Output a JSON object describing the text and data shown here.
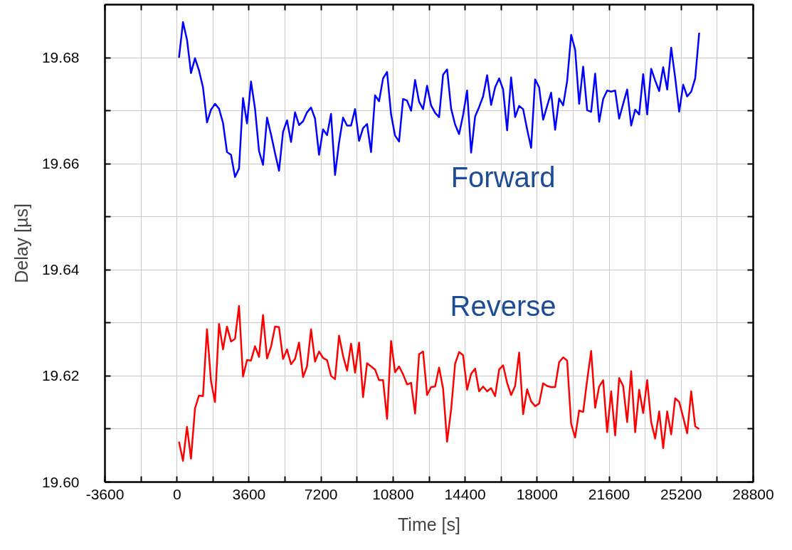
{
  "chart_data": {
    "type": "line",
    "xlabel": "Time [s]",
    "ylabel": "Delay [µs]",
    "x": [
      100,
      300,
      500,
      700,
      900,
      1100,
      1300,
      1500,
      1700,
      1900,
      2100,
      2300,
      2500,
      2700,
      2900,
      3100,
      3300,
      3500,
      3700,
      3900,
      4100,
      4300,
      4500,
      4700,
      4900,
      5100,
      5300,
      5500,
      5700,
      5900,
      6100,
      6300,
      6500,
      6700,
      6900,
      7100,
      7300,
      7500,
      7700,
      7900,
      8100,
      8300,
      8500,
      8700,
      8900,
      9100,
      9300,
      9500,
      9700,
      9900,
      10100,
      10300,
      10500,
      10700,
      10900,
      11100,
      11300,
      11500,
      11700,
      11900,
      12100,
      12300,
      12500,
      12700,
      12900,
      13100,
      13300,
      13500,
      13700,
      13900,
      14100,
      14300,
      14500,
      14700,
      14900,
      15100,
      15300,
      15500,
      15700,
      15900,
      16100,
      16300,
      16500,
      16700,
      16900,
      17100,
      17300,
      17500,
      17700,
      17900,
      18100,
      18300,
      18500,
      18700,
      18900,
      19100,
      19300,
      19500,
      19700,
      19900,
      20100,
      20300,
      20500,
      20700,
      20900,
      21100,
      21300,
      21500,
      21700,
      21900,
      22100,
      22300,
      22500,
      22700,
      22900,
      23100,
      23300,
      23500,
      23700,
      23900,
      24100,
      24300,
      24500,
      24700,
      24900,
      25100,
      25300,
      25500,
      25700,
      25900,
      26100
    ],
    "series": [
      {
        "name": "Forward",
        "color": "#0000ff",
        "values": [
          19.68,
          19.6867,
          19.6834,
          19.6771,
          19.6799,
          19.6776,
          19.6744,
          19.6678,
          19.6702,
          19.6713,
          19.6704,
          19.6677,
          19.6622,
          19.6617,
          19.6575,
          19.6591,
          19.6724,
          19.6676,
          19.6755,
          19.6704,
          19.6624,
          19.6598,
          19.6687,
          19.6655,
          19.662,
          19.6587,
          19.666,
          19.6682,
          19.6641,
          19.6697,
          19.6673,
          19.668,
          19.6697,
          19.6706,
          19.6685,
          19.6617,
          19.6665,
          19.6654,
          19.6694,
          19.6579,
          19.664,
          19.6687,
          19.6672,
          19.6672,
          19.6703,
          19.6643,
          19.6667,
          19.6675,
          19.6622,
          19.6729,
          19.6718,
          19.6761,
          19.6773,
          19.6693,
          19.6653,
          19.6642,
          19.6722,
          19.6719,
          19.67,
          19.6758,
          19.6717,
          19.6703,
          19.6747,
          19.671,
          19.6696,
          19.6688,
          19.6768,
          19.6778,
          19.6704,
          19.6674,
          19.6656,
          19.6692,
          19.6738,
          19.6621,
          19.6689,
          19.6707,
          19.6727,
          19.6767,
          19.6711,
          19.6744,
          19.6761,
          19.674,
          19.6663,
          19.6763,
          19.6688,
          19.6709,
          19.6703,
          19.6665,
          19.663,
          19.6759,
          19.6744,
          19.6683,
          19.6709,
          19.6734,
          19.6664,
          19.6723,
          19.671,
          19.6756,
          19.6843,
          19.6815,
          19.6713,
          19.6783,
          19.6701,
          19.6698,
          19.677,
          19.6679,
          19.6722,
          19.6738,
          19.6736,
          19.6738,
          19.6685,
          19.6713,
          19.674,
          19.6672,
          19.6702,
          19.6693,
          19.6769,
          19.6693,
          19.6779,
          19.6757,
          19.6737,
          19.6782,
          19.674,
          19.6819,
          19.6762,
          19.6698,
          19.6749,
          19.6727,
          19.6736,
          19.6761,
          19.6847
        ]
      },
      {
        "name": "Reverse",
        "color": "#ff0000",
        "values": [
          19.6076,
          19.604,
          19.6104,
          19.6044,
          19.6139,
          19.6163,
          19.6162,
          19.6288,
          19.619,
          19.6151,
          19.6298,
          19.625,
          19.6293,
          19.6265,
          19.627,
          19.6332,
          19.6199,
          19.623,
          19.6229,
          19.6256,
          19.6236,
          19.6315,
          19.6233,
          19.6255,
          19.6293,
          19.6292,
          19.6232,
          19.625,
          19.6222,
          19.6232,
          19.6263,
          19.6198,
          19.6218,
          19.6288,
          19.6227,
          19.6246,
          19.6234,
          19.623,
          19.62,
          19.6194,
          19.6276,
          19.6238,
          19.621,
          19.6261,
          19.6206,
          19.6263,
          19.616,
          19.6224,
          19.6218,
          19.6212,
          19.6192,
          19.6192,
          19.6119,
          19.6266,
          19.6207,
          19.6218,
          19.6203,
          19.6184,
          19.6187,
          19.6129,
          19.6241,
          19.6246,
          19.6164,
          19.6179,
          19.618,
          19.6216,
          19.6176,
          19.6076,
          19.6136,
          19.6223,
          19.6245,
          19.6239,
          19.6174,
          19.6204,
          19.6214,
          19.6171,
          19.618,
          19.6171,
          19.6177,
          19.6162,
          19.6212,
          19.622,
          19.6187,
          19.6164,
          19.6181,
          19.6244,
          19.6128,
          19.6175,
          19.6152,
          19.6143,
          19.6148,
          19.6186,
          19.6181,
          19.6179,
          19.6179,
          19.6226,
          19.6235,
          19.6229,
          19.611,
          19.6084,
          19.6135,
          19.6132,
          19.6192,
          19.6247,
          19.614,
          19.618,
          19.6192,
          19.6094,
          19.6171,
          19.6088,
          19.6196,
          19.6181,
          19.6113,
          19.6209,
          19.6094,
          19.6174,
          19.613,
          19.6192,
          19.6113,
          19.6082,
          19.6133,
          19.6064,
          19.6133,
          19.609,
          19.6158,
          19.6151,
          19.6122,
          19.6092,
          19.6171,
          19.6105,
          19.61
        ]
      }
    ],
    "xlim": [
      -3600,
      28800
    ],
    "xticks": [
      -3600,
      {
        "value": -1800,
        "label": null
      },
      0,
      {
        "value": 1800,
        "label": null
      },
      3600,
      {
        "value": 5400,
        "label": null
      },
      7200,
      {
        "value": 9000,
        "label": null
      },
      10800,
      {
        "value": 12600,
        "label": null
      },
      14400,
      {
        "value": 16200,
        "label": null
      },
      18000,
      {
        "value": 19800,
        "label": null
      },
      21600,
      {
        "value": 23400,
        "label": null
      },
      25200,
      {
        "value": 27000,
        "label": null
      },
      28800
    ],
    "ylim": [
      19.6,
      19.69
    ],
    "yticks": [
      {
        "value": 19.6,
        "label": "19.60"
      },
      {
        "value": 19.61,
        "label": null
      },
      {
        "value": 19.62,
        "label": "19.62"
      },
      {
        "value": 19.63,
        "label": null
      },
      {
        "value": 19.64,
        "label": "19.64"
      },
      {
        "value": 19.65,
        "label": null
      },
      {
        "value": 19.66,
        "label": "19.66"
      },
      {
        "value": 19.67,
        "label": null
      },
      {
        "value": 19.68,
        "label": "19.68"
      }
    ],
    "grid": true,
    "line_style": "solid"
  }
}
